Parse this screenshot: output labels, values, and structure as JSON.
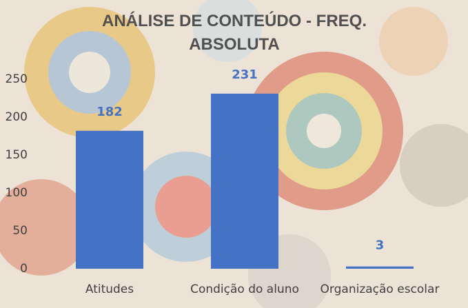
{
  "chart_data": {
    "type": "bar",
    "title": "ANÁLISE DE CONTEÚDO - FREQ. ABSOLUTA",
    "categories": [
      "Atitudes",
      "Condição do aluno",
      "Organização escolar"
    ],
    "values": [
      182,
      231,
      3
    ],
    "color": "#4472c4",
    "ylim": [
      0,
      250
    ],
    "yticks": [
      0,
      50,
      100,
      150,
      200,
      250
    ],
    "grid": false
  }
}
